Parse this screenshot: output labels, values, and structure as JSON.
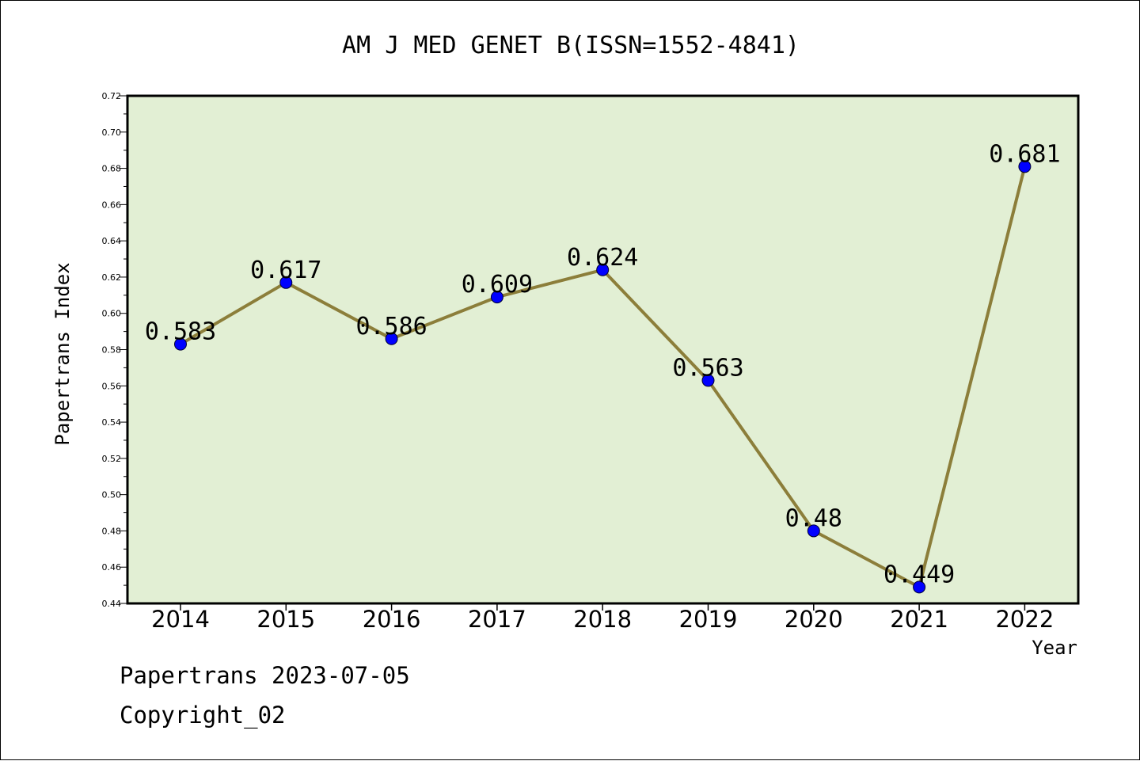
{
  "chart_data": {
    "type": "line",
    "title": "AM J MED GENET B(ISSN=1552-4841)",
    "xlabel": "Year",
    "ylabel": "Papertrans Index",
    "categories": [
      "2014",
      "2015",
      "2016",
      "2017",
      "2018",
      "2019",
      "2020",
      "2021",
      "2022"
    ],
    "series": [
      {
        "values": [
          0.583,
          0.617,
          0.586,
          0.609,
          0.624,
          0.563,
          0.48,
          0.449,
          0.681
        ],
        "labels": [
          "0.583",
          "0.617",
          "0.586",
          "0.609",
          "0.624",
          "0.563",
          "0.48",
          "0.449",
          "0.681"
        ]
      }
    ],
    "ylim": [
      0.44,
      0.72
    ],
    "yticks": [
      "0.44",
      "0.46",
      "0.48",
      "0.50",
      "0.52",
      "0.54",
      "0.56",
      "0.58",
      "0.60",
      "0.62",
      "0.64",
      "0.66",
      "0.68",
      "0.70",
      "0.72"
    ],
    "grid": false,
    "colors": {
      "plot_background": "#e2efd4",
      "line": "#8c7e3a",
      "marker": "#0000ff"
    }
  },
  "footer": {
    "source": "Papertrans 2023-07-05",
    "copyright": "Copyright_02"
  }
}
